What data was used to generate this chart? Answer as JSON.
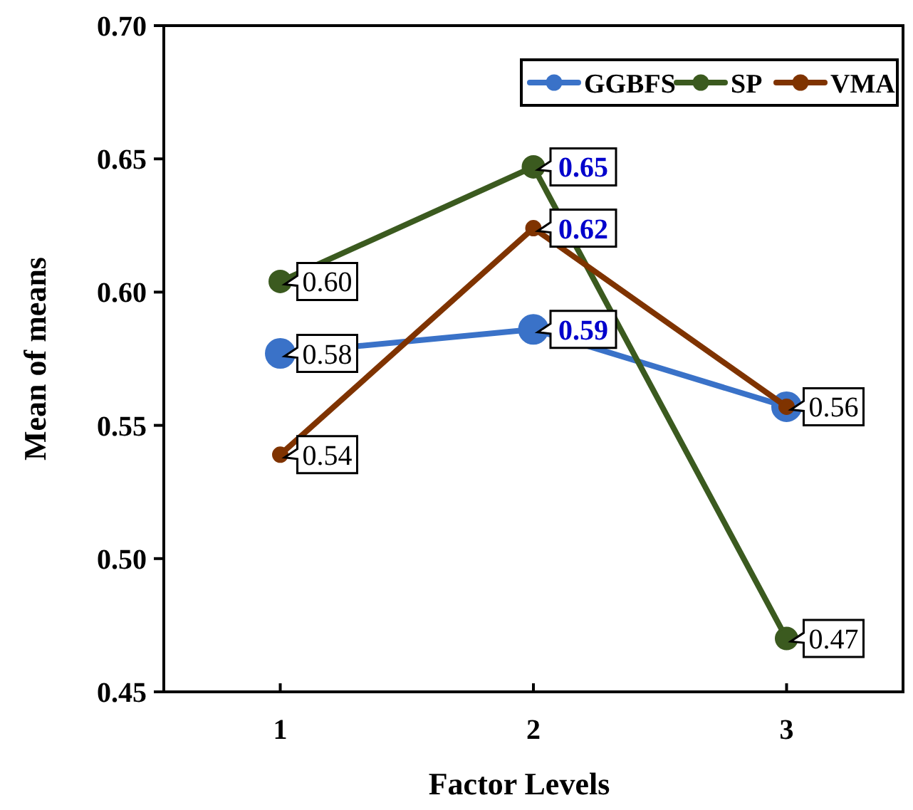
{
  "chart_data": {
    "type": "line",
    "xlabel": "Factor Levels",
    "ylabel": "Mean of means",
    "categories": [
      "1",
      "2",
      "3"
    ],
    "series": [
      {
        "name": "GGBFS",
        "color": "#3a72c8",
        "values": [
          0.577,
          0.586,
          0.557
        ],
        "value_labels": [
          "0.58",
          "0.59",
          null
        ]
      },
      {
        "name": "SP",
        "color": "#3b5a1f",
        "values": [
          0.604,
          0.647,
          0.47
        ],
        "value_labels": [
          "0.60",
          "0.65",
          "0.47"
        ]
      },
      {
        "name": "VMA",
        "color": "#7f3300",
        "values": [
          0.539,
          0.624,
          0.557
        ],
        "value_labels": [
          "0.54",
          "0.62",
          "0.56"
        ]
      }
    ],
    "ylim": [
      0.45,
      0.7
    ],
    "yticks": [
      "0.45",
      "0.50",
      "0.55",
      "0.60",
      "0.65",
      "0.70"
    ],
    "grid": false,
    "legend": "top right",
    "marker": "circle",
    "line_style": "solid"
  }
}
